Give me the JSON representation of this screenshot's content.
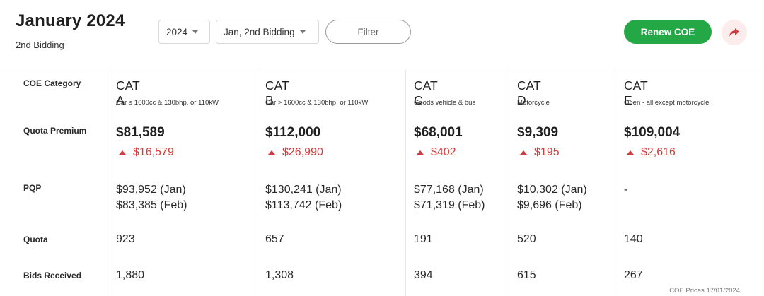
{
  "header": {
    "title": "January 2024",
    "subtitle": "2nd Bidding",
    "year_select": "2024",
    "round_select": "Jan, 2nd Bidding",
    "filter_label": "Filter",
    "renew_label": "Renew COE",
    "share_icon": "share-icon"
  },
  "rows": {
    "category": "COE Category",
    "premium": "Quota Premium",
    "pqp": "PQP",
    "quota": "Quota",
    "bids": "Bids Received"
  },
  "categories": [
    {
      "name": "CAT A",
      "desc": "Car ≤ 1600cc & 130bhp, or 110kW",
      "premium": "$81,589",
      "change": "$16,579",
      "pqp1": "$93,952 (Jan)",
      "pqp2": "$83,385 (Feb)",
      "quota": "923",
      "bids": "1,880"
    },
    {
      "name": "CAT B",
      "desc": "Car > 1600cc & 130bhp, or 110kW",
      "premium": "$112,000",
      "change": "$26,990",
      "pqp1": "$130,241 (Jan)",
      "pqp2": "$113,742 (Feb)",
      "quota": "657",
      "bids": "1,308"
    },
    {
      "name": "CAT C",
      "desc": "Goods vehicle & bus",
      "premium": "$68,001",
      "change": "$402",
      "pqp1": "$77,168 (Jan)",
      "pqp2": "$71,319 (Feb)",
      "quota": "191",
      "bids": "394"
    },
    {
      "name": "CAT D",
      "desc": "Motorcycle",
      "premium": "$9,309",
      "change": "$195",
      "pqp1": "$10,302 (Jan)",
      "pqp2": "$9,696 (Feb)",
      "quota": "520",
      "bids": "615"
    },
    {
      "name": "CAT E",
      "desc": "Open - all except motorcycle",
      "premium": "$109,004",
      "change": "$2,616",
      "pqp1": "-",
      "pqp2": "",
      "quota": "140",
      "bids": "267"
    }
  ],
  "footer": {
    "note": "COE Prices 17/01/2024"
  },
  "colors": {
    "accent_green": "#23a845",
    "increase_red": "#d23b3b",
    "share_bg": "#fdecec"
  }
}
